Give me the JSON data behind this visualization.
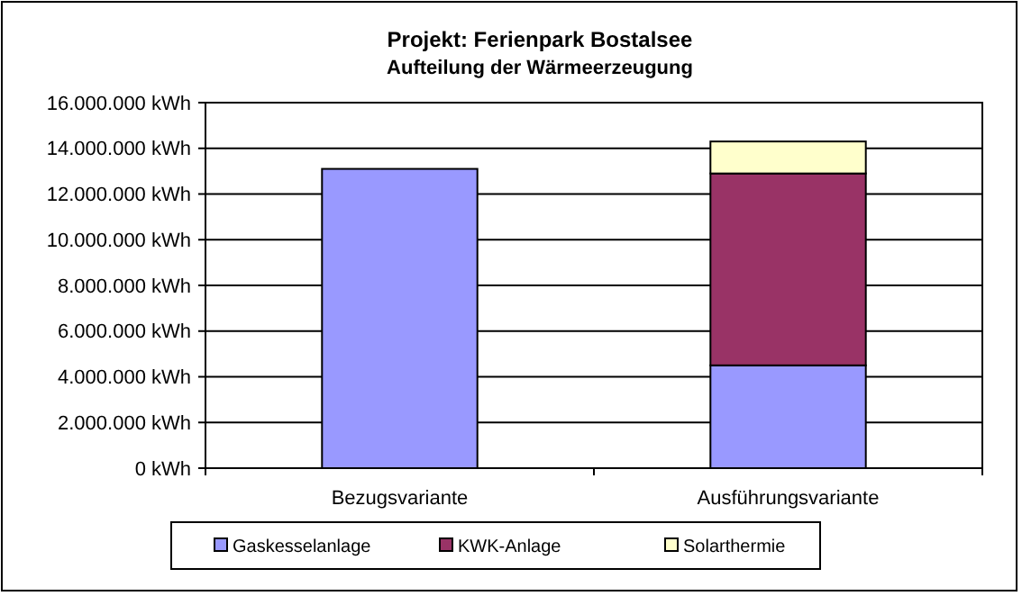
{
  "chart_data": {
    "type": "bar",
    "title": "Projekt: Ferienpark Bostalsee",
    "subtitle": "Aufteilung der Wärmeerzeugung",
    "categories": [
      "Bezugsvariante",
      "Ausführungsvariante"
    ],
    "stacked": true,
    "series": [
      {
        "name": "Gaskesselanlage",
        "color": "#9999ff",
        "values": [
          13100000,
          4500000
        ]
      },
      {
        "name": "KWK-Anlage",
        "color": "#993366",
        "values": [
          0,
          8400000
        ]
      },
      {
        "name": "Solarthermie",
        "color": "#ffffcc",
        "values": [
          0,
          1400000
        ]
      }
    ],
    "ylim": [
      0,
      16000000
    ],
    "yticks": [
      {
        "value": 0,
        "label": "0 kWh"
      },
      {
        "value": 2000000,
        "label": "2.000.000 kWh"
      },
      {
        "value": 4000000,
        "label": "4.000.000 kWh"
      },
      {
        "value": 6000000,
        "label": "6.000.000 kWh"
      },
      {
        "value": 8000000,
        "label": "8.000.000 kWh"
      },
      {
        "value": 10000000,
        "label": "10.000.000 kWh"
      },
      {
        "value": 12000000,
        "label": "12.000.000 kWh"
      },
      {
        "value": 14000000,
        "label": "14.000.000 kWh"
      },
      {
        "value": 16000000,
        "label": "16.000.000 kWh"
      }
    ],
    "grid": "y",
    "legend": "bottom"
  }
}
